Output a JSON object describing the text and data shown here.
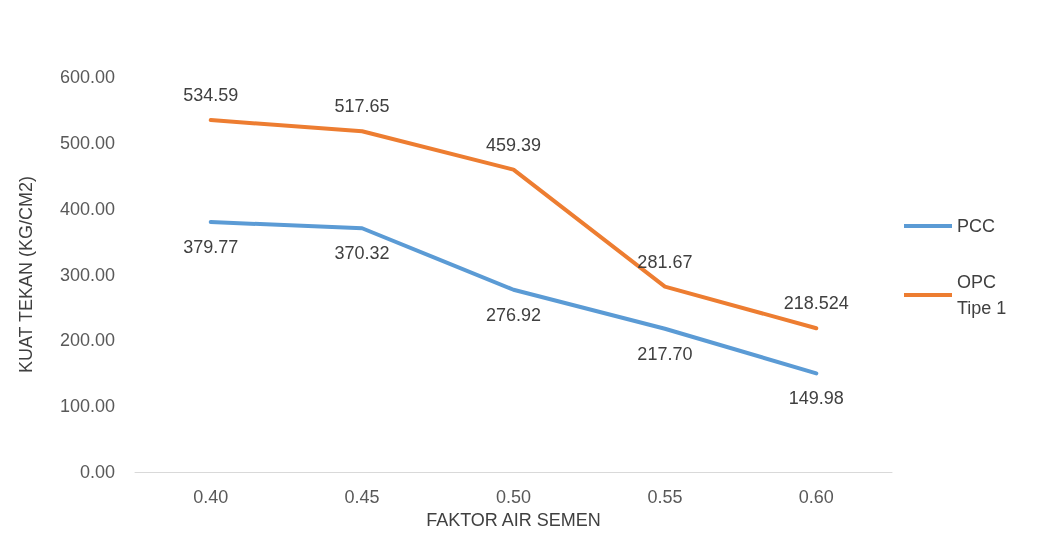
{
  "chart_data": {
    "type": "line",
    "xlabel": "FAKTOR AIR SEMEN",
    "ylabel": "KUAT TEKAN (KG/CM2)",
    "categories": [
      "0.40",
      "0.45",
      "0.50",
      "0.55",
      "0.60"
    ],
    "series": [
      {
        "name": "PCC",
        "color": "#5b9bd5",
        "values": [
          379.77,
          370.32,
          276.92,
          217.7,
          149.98
        ],
        "value_labels": [
          "379.77",
          "370.32",
          "276.92",
          "217.70",
          "149.98"
        ]
      },
      {
        "name": "OPC Tipe 1",
        "color": "#ed7d31",
        "values": [
          534.59,
          517.65,
          459.39,
          281.67,
          218.524
        ],
        "value_labels": [
          "534.59",
          "517.65",
          "459.39",
          "281.67",
          "218.524"
        ]
      }
    ],
    "ylim": [
      0,
      600
    ],
    "yticks": [
      {
        "value": 0,
        "label": "0.00"
      },
      {
        "value": 100,
        "label": "100.00"
      },
      {
        "value": 200,
        "label": "200.00"
      },
      {
        "value": 300,
        "label": "300.00"
      },
      {
        "value": 400,
        "label": "400.00"
      },
      {
        "value": 500,
        "label": "500.00"
      },
      {
        "value": 600,
        "label": "600.00"
      }
    ],
    "legend": "right",
    "marker": "none",
    "line_style": "solid"
  }
}
